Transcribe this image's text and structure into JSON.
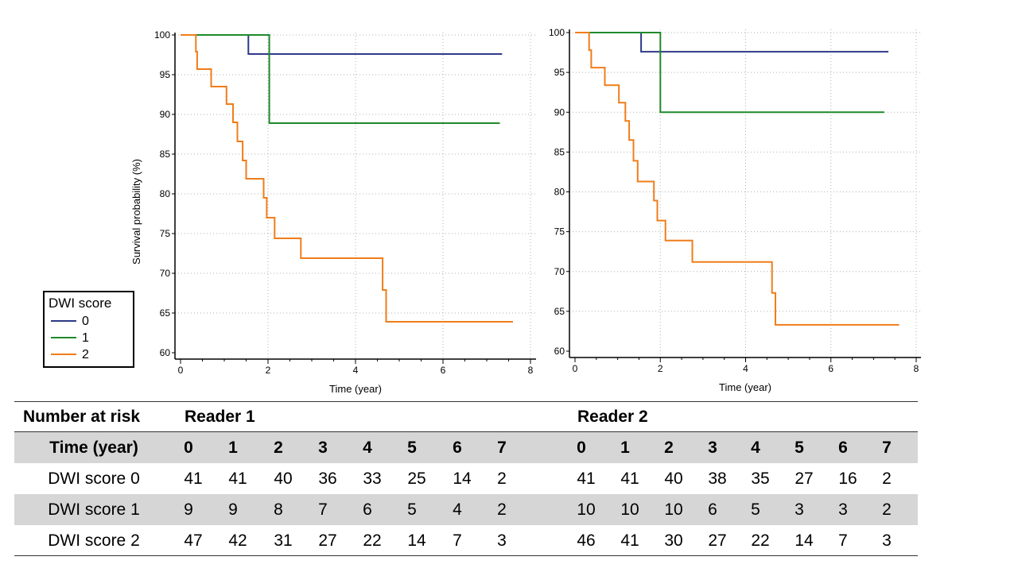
{
  "chart_data": [
    {
      "type": "line",
      "subtype": "kaplan-meier step",
      "panel": "Reader 1",
      "xlabel": "Time (year)",
      "ylabel": "Survival probability (%)",
      "xlim": [
        0,
        8
      ],
      "ylim": [
        60,
        100
      ],
      "xticks": [
        0,
        2,
        4,
        6,
        8
      ],
      "yticks": [
        60,
        65,
        70,
        75,
        80,
        85,
        90,
        95,
        100
      ],
      "grid": true,
      "series": [
        {
          "name": "0",
          "color": "#2e3a87",
          "steps": [
            [
              0,
              100
            ],
            [
              1.55,
              100
            ],
            [
              1.55,
              97.6
            ],
            [
              7.35,
              97.6
            ]
          ]
        },
        {
          "name": "1",
          "color": "#1f8a2a",
          "steps": [
            [
              0,
              100
            ],
            [
              2.03,
              100
            ],
            [
              2.03,
              88.9
            ],
            [
              7.3,
              88.9
            ]
          ]
        },
        {
          "name": "2",
          "color": "#f07d1a",
          "steps": [
            [
              0,
              100
            ],
            [
              0.35,
              100
            ],
            [
              0.35,
              97.9
            ],
            [
              0.38,
              97.9
            ],
            [
              0.38,
              95.7
            ],
            [
              0.7,
              95.7
            ],
            [
              0.7,
              93.5
            ],
            [
              1.05,
              93.5
            ],
            [
              1.05,
              91.3
            ],
            [
              1.2,
              91.3
            ],
            [
              1.2,
              89.0
            ],
            [
              1.3,
              89.0
            ],
            [
              1.3,
              86.6
            ],
            [
              1.42,
              86.6
            ],
            [
              1.42,
              84.2
            ],
            [
              1.5,
              84.2
            ],
            [
              1.5,
              81.9
            ],
            [
              1.9,
              81.9
            ],
            [
              1.9,
              79.5
            ],
            [
              1.97,
              79.5
            ],
            [
              1.97,
              77.0
            ],
            [
              2.15,
              77.0
            ],
            [
              2.15,
              74.4
            ],
            [
              2.75,
              74.4
            ],
            [
              2.75,
              71.9
            ],
            [
              4.62,
              71.9
            ],
            [
              4.62,
              67.9
            ],
            [
              4.7,
              67.9
            ],
            [
              4.7,
              63.9
            ],
            [
              7.6,
              63.9
            ]
          ]
        }
      ]
    },
    {
      "type": "line",
      "subtype": "kaplan-meier step",
      "panel": "Reader 2",
      "xlabel": "Time (year)",
      "ylabel": "",
      "xlim": [
        0,
        8
      ],
      "ylim": [
        60,
        100
      ],
      "xticks": [
        0,
        2,
        4,
        6,
        8
      ],
      "yticks": [
        60,
        65,
        70,
        75,
        80,
        85,
        90,
        95,
        100
      ],
      "grid": true,
      "series": [
        {
          "name": "0",
          "color": "#2e3a87",
          "steps": [
            [
              0,
              100
            ],
            [
              1.55,
              100
            ],
            [
              1.55,
              97.6
            ],
            [
              7.35,
              97.6
            ]
          ]
        },
        {
          "name": "1",
          "color": "#1f8a2a",
          "steps": [
            [
              0,
              100
            ],
            [
              2.0,
              100
            ],
            [
              2.0,
              90.0
            ],
            [
              7.25,
              90.0
            ]
          ]
        },
        {
          "name": "2",
          "color": "#f07d1a",
          "steps": [
            [
              0,
              100
            ],
            [
              0.33,
              100
            ],
            [
              0.33,
              97.8
            ],
            [
              0.38,
              97.8
            ],
            [
              0.38,
              95.6
            ],
            [
              0.7,
              95.6
            ],
            [
              0.7,
              93.4
            ],
            [
              1.03,
              93.4
            ],
            [
              1.03,
              91.2
            ],
            [
              1.18,
              91.2
            ],
            [
              1.18,
              88.9
            ],
            [
              1.27,
              88.9
            ],
            [
              1.27,
              86.5
            ],
            [
              1.37,
              86.5
            ],
            [
              1.37,
              83.9
            ],
            [
              1.47,
              83.9
            ],
            [
              1.47,
              81.3
            ],
            [
              1.85,
              81.3
            ],
            [
              1.85,
              78.9
            ],
            [
              1.93,
              78.9
            ],
            [
              1.93,
              76.4
            ],
            [
              2.12,
              76.4
            ],
            [
              2.12,
              73.9
            ],
            [
              2.75,
              73.9
            ],
            [
              2.75,
              71.2
            ],
            [
              4.62,
              71.2
            ],
            [
              4.62,
              67.3
            ],
            [
              4.7,
              67.3
            ],
            [
              4.7,
              63.3
            ],
            [
              7.6,
              63.3
            ]
          ]
        }
      ]
    }
  ],
  "legend": {
    "title": "DWI score",
    "items": [
      {
        "label": "0",
        "color": "#2e3a87"
      },
      {
        "label": "1",
        "color": "#1f8a2a"
      },
      {
        "label": "2",
        "color": "#f07d1a"
      }
    ]
  },
  "risk_table": {
    "title": "Number at risk",
    "reader1_label": "Reader 1",
    "reader2_label": "Reader 2",
    "time_label": "Time (year)",
    "times": [
      "0",
      "1",
      "2",
      "3",
      "4",
      "5",
      "6",
      "7"
    ],
    "rows": [
      {
        "label": "DWI score 0",
        "reader1": [
          "41",
          "41",
          "40",
          "36",
          "33",
          "25",
          "14",
          "2"
        ],
        "reader2": [
          "41",
          "41",
          "40",
          "38",
          "35",
          "27",
          "16",
          "2"
        ]
      },
      {
        "label": "DWI score 1",
        "reader1": [
          "9",
          "9",
          "8",
          "7",
          "6",
          "5",
          "4",
          "2"
        ],
        "reader2": [
          "10",
          "10",
          "10",
          "6",
          "5",
          "3",
          "3",
          "2"
        ]
      },
      {
        "label": "DWI score 2",
        "reader1": [
          "47",
          "42",
          "31",
          "27",
          "22",
          "14",
          "7",
          "3"
        ],
        "reader2": [
          "46",
          "41",
          "30",
          "27",
          "22",
          "14",
          "7",
          "3"
        ]
      }
    ]
  }
}
